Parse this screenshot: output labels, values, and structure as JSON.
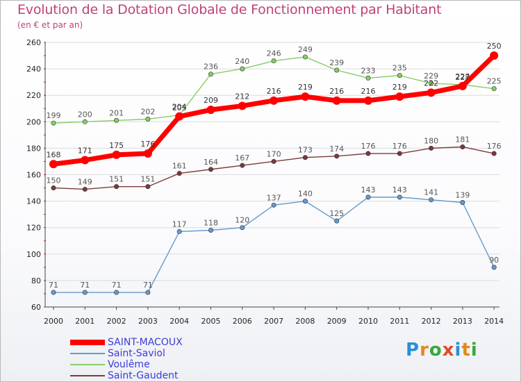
{
  "title": "Evolution de la Dotation Globale de Fonctionnement par Habitant",
  "subtitle": "(en € et par an)",
  "logo": {
    "text": "Proxiti",
    "colors": [
      "#2a8fd8",
      "#e08a1a",
      "#3aa83a",
      "#e04a2a",
      "#2a8fd8",
      "#e08a1a",
      "#3aa83a"
    ]
  },
  "chart_data": {
    "type": "line",
    "title": "Evolution de la Dotation Globale de Fonctionnement par Habitant",
    "subtitle": "(en € et par an)",
    "x": [
      "2000",
      "2001",
      "2002",
      "2003",
      "2004",
      "2005",
      "2006",
      "2007",
      "2008",
      "2009",
      "2010",
      "2011",
      "2012",
      "2013",
      "2014"
    ],
    "ylim": [
      60,
      260
    ],
    "yticks": [
      60,
      80,
      100,
      120,
      140,
      160,
      180,
      200,
      220,
      240,
      260
    ],
    "grid": "horizontal",
    "legend_position": "bottom-left",
    "series": [
      {
        "name": "SAINT-MACOUX",
        "color": "#ff0000",
        "values": [
          168,
          171,
          175,
          176,
          204,
          209,
          212,
          216,
          219,
          216,
          216,
          219,
          222,
          227,
          250
        ]
      },
      {
        "name": "Saint-Saviol",
        "color": "#6699cc",
        "values": [
          71,
          71,
          71,
          71,
          117,
          118,
          120,
          137,
          140,
          125,
          143,
          143,
          141,
          139,
          90
        ]
      },
      {
        "name": "Voulême",
        "color": "#88cc66",
        "values": [
          199,
          200,
          201,
          202,
          205,
          236,
          240,
          246,
          249,
          239,
          233,
          235,
          229,
          228,
          225
        ]
      },
      {
        "name": "Saint-Gaudent",
        "color": "#7a3a3a",
        "values": [
          150,
          149,
          151,
          151,
          161,
          164,
          167,
          170,
          173,
          174,
          176,
          176,
          180,
          181,
          176
        ]
      }
    ]
  }
}
